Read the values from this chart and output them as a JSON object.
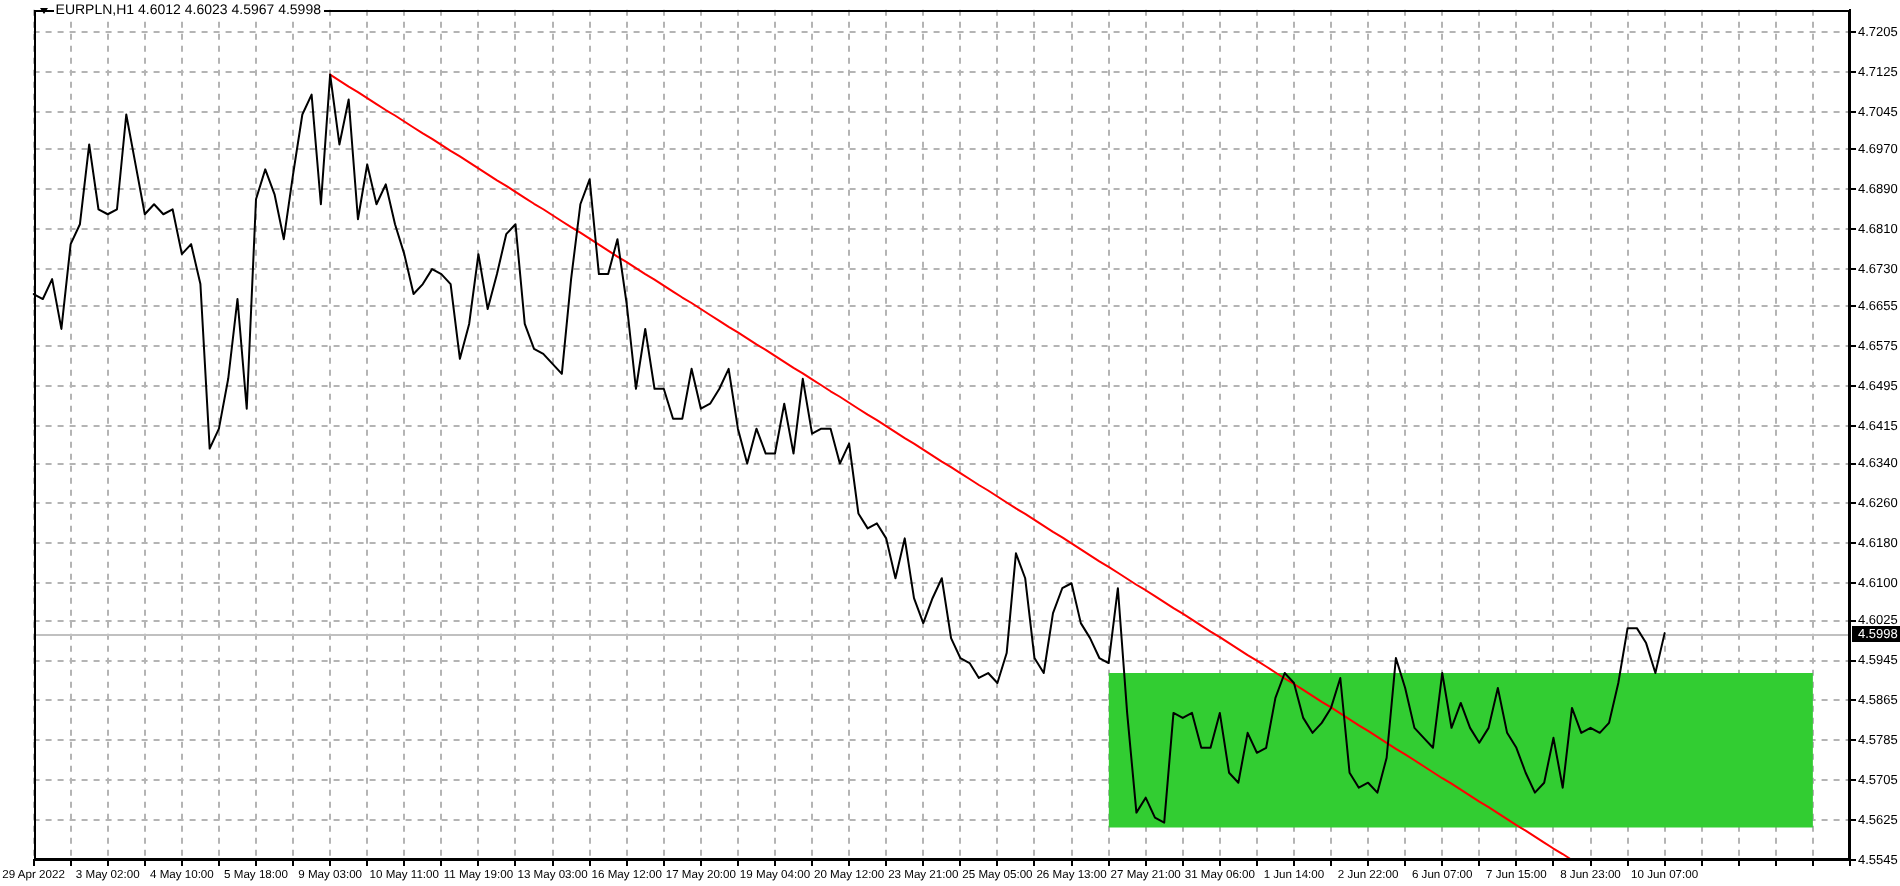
{
  "chart_data": {
    "type": "line",
    "title": "EURPLN,H1 4.6012 4.6023 4.5967 4.5998",
    "categories": [
      "29 Apr 2022",
      null,
      null,
      null,
      null,
      null,
      null,
      null,
      "3 May 02:00",
      null,
      null,
      null,
      null,
      null,
      null,
      null,
      "4 May 10:00",
      null,
      null,
      null,
      null,
      null,
      null,
      null,
      "5 May 18:00",
      null,
      null,
      null,
      null,
      null,
      null,
      null,
      "9 May 03:00",
      null,
      null,
      null,
      null,
      null,
      null,
      null,
      "10 May 11:00",
      null,
      null,
      null,
      null,
      null,
      null,
      null,
      "11 May 19:00",
      null,
      null,
      null,
      null,
      null,
      null,
      null,
      "13 May 03:00",
      null,
      null,
      null,
      null,
      null,
      null,
      null,
      "16 May 12:00",
      null,
      null,
      null,
      null,
      null,
      null,
      null,
      "17 May 20:00",
      null,
      null,
      null,
      null,
      null,
      null,
      null,
      "19 May 04:00",
      null,
      null,
      null,
      null,
      null,
      null,
      null,
      "20 May 12:00",
      null,
      null,
      null,
      null,
      null,
      null,
      null,
      "23 May 21:00",
      null,
      null,
      null,
      null,
      null,
      null,
      null,
      "25 May 05:00",
      null,
      null,
      null,
      null,
      null,
      null,
      null,
      "26 May 13:00",
      null,
      null,
      null,
      null,
      null,
      null,
      null,
      "27 May 21:00",
      null,
      null,
      null,
      null,
      null,
      null,
      null,
      "31 May 06:00",
      null,
      null,
      null,
      null,
      null,
      null,
      null,
      "1 Jun 14:00",
      null,
      null,
      null,
      null,
      null,
      null,
      null,
      "2 Jun 22:00",
      null,
      null,
      null,
      null,
      null,
      null,
      null,
      "6 Jun 07:00",
      null,
      null,
      null,
      null,
      null,
      null,
      null,
      "7 Jun 15:00",
      null,
      null,
      null,
      null,
      null,
      null,
      null,
      "8 Jun 23:00",
      null,
      null,
      null,
      null,
      null,
      null,
      null,
      "10 Jun 07:00",
      null,
      null,
      null,
      null,
      null,
      null,
      null,
      null,
      null,
      null,
      null,
      null,
      null,
      null,
      null,
      null,
      null,
      null,
      null,
      null
    ],
    "ylim": [
      4.5545,
      4.725
    ],
    "yticks": [
      4.5545,
      4.5625,
      4.5705,
      4.5785,
      4.5865,
      4.5945,
      4.6025,
      {
        "value": 4.61,
        "label": "4.6100"
      },
      {
        "value": 4.618,
        "label": "4.6180"
      },
      {
        "value": 4.626,
        "label": "4.6260"
      },
      {
        "value": 4.634,
        "label": "4.6340"
      },
      4.6415,
      4.6495,
      4.6575,
      4.6655,
      {
        "value": 4.673,
        "label": "4.6730"
      },
      {
        "value": 4.681,
        "label": "4.6810"
      },
      {
        "value": 4.689,
        "label": "4.6890"
      },
      {
        "value": 4.697,
        "label": "4.6970"
      },
      4.7045,
      4.7125,
      4.7205
    ],
    "grid": true,
    "marker": "none",
    "ref_lines": [
      {
        "axis": "y",
        "value": 4.5998,
        "label": "4.5998",
        "color": "#c0c0c0"
      }
    ],
    "series": [
      {
        "type": "line",
        "color": "#000000",
        "values": [
          4.668,
          4.667,
          4.671,
          4.661,
          4.678,
          4.682,
          4.698,
          4.685,
          4.684,
          4.685,
          4.704,
          4.694,
          4.684,
          4.686,
          4.684,
          4.685,
          4.676,
          4.678,
          4.67,
          4.637,
          4.641,
          4.651,
          4.667,
          4.645,
          4.687,
          4.693,
          4.688,
          4.679,
          4.692,
          4.704,
          4.708,
          4.686,
          4.712,
          4.698,
          4.707,
          4.683,
          4.694,
          4.686,
          4.69,
          4.682,
          4.676,
          4.668,
          4.67,
          4.673,
          4.672,
          4.67,
          4.655,
          4.662,
          4.676,
          4.665,
          4.672,
          4.68,
          4.682,
          4.662,
          4.657,
          4.656,
          4.654,
          4.652,
          4.671,
          4.686,
          4.691,
          4.672,
          4.672,
          4.679,
          4.666,
          4.649,
          4.661,
          4.649,
          4.649,
          4.643,
          4.643,
          4.653,
          4.645,
          4.646,
          4.649,
          4.653,
          4.641,
          4.634,
          4.641,
          4.636,
          4.636,
          4.646,
          4.636,
          4.651,
          4.64,
          4.641,
          4.641,
          4.634,
          4.638,
          4.624,
          4.621,
          4.622,
          4.619,
          4.611,
          4.619,
          4.607,
          4.602,
          4.607,
          4.611,
          4.599,
          4.595,
          4.594,
          4.591,
          4.592,
          4.59,
          4.596,
          4.616,
          4.611,
          4.595,
          4.592,
          4.604,
          4.609,
          4.61,
          4.602,
          4.599,
          4.595,
          4.594,
          4.609,
          4.584,
          4.564,
          4.567,
          4.563,
          4.562,
          4.584,
          4.583,
          4.584,
          4.577,
          4.577,
          4.584,
          4.572,
          4.57,
          4.58,
          4.576,
          4.577,
          4.587,
          4.592,
          4.59,
          4.583,
          4.58,
          4.582,
          4.585,
          4.591,
          4.572,
          4.569,
          4.57,
          4.568,
          4.575,
          4.595,
          4.589,
          4.581,
          4.579,
          4.577,
          4.592,
          4.581,
          4.586,
          4.581,
          4.578,
          4.581,
          4.589,
          4.58,
          4.577,
          4.572,
          4.568,
          4.57,
          4.579,
          4.569,
          4.585,
          4.58,
          4.581,
          4.58,
          4.582,
          4.59,
          4.601,
          4.601,
          4.598,
          4.592,
          4.6,
          null,
          null,
          null,
          null,
          null,
          null,
          null,
          null,
          null,
          null,
          null,
          null,
          null,
          null,
          null,
          null,
          null,
          null,
          null,
          null
        ]
      },
      {
        "type": "line",
        "color": "#ff0000",
        "values": [
          null,
          null,
          null,
          null,
          null,
          null,
          null,
          null,
          null,
          null,
          null,
          null,
          null,
          null,
          null,
          null,
          null,
          null,
          null,
          null,
          null,
          null,
          null,
          null,
          null,
          null,
          null,
          null,
          null,
          null,
          null,
          null,
          4.712,
          4.7108,
          4.7096,
          4.7085,
          4.7073,
          4.7061,
          4.7049,
          4.7038,
          4.7026,
          4.7014,
          4.7002,
          4.6991,
          4.6979,
          4.6967,
          4.6956,
          4.6944,
          4.6932,
          4.692,
          4.6908,
          4.6897,
          4.6885,
          4.6873,
          4.6861,
          4.685,
          4.6838,
          4.6826,
          4.6814,
          4.6803,
          4.6791,
          4.6779,
          4.6767,
          4.6755,
          4.6744,
          4.6732,
          4.672,
          4.6709,
          4.6697,
          4.6685,
          4.6673,
          4.6662,
          4.665,
          4.6638,
          4.6626,
          4.6614,
          4.6603,
          4.6591,
          4.6579,
          4.6568,
          4.6556,
          4.6544,
          4.6532,
          4.6521,
          4.6509,
          4.6497,
          4.6485,
          4.6474,
          4.6462,
          4.645,
          4.6438,
          4.6427,
          4.6415,
          4.6403,
          4.6391,
          4.638,
          4.6368,
          4.6356,
          4.6344,
          4.6333,
          4.6321,
          4.6309,
          4.6297,
          4.6286,
          4.6274,
          4.6262,
          4.625,
          4.6239,
          4.6227,
          4.6215,
          4.6203,
          4.6192,
          4.618,
          4.6168,
          4.6156,
          4.6144,
          4.6133,
          4.6121,
          4.6109,
          4.6097,
          4.6086,
          4.6074,
          4.6062,
          4.605,
          4.6039,
          4.6027,
          4.6015,
          4.6003,
          4.5992,
          4.598,
          4.5968,
          4.5956,
          4.5945,
          4.5933,
          4.5921,
          4.5909,
          4.5898,
          4.5886,
          4.5874,
          4.5862,
          4.5851,
          4.5839,
          4.5827,
          4.5815,
          4.5804,
          4.5792,
          4.578,
          4.5768,
          4.5757,
          4.5745,
          4.5733,
          4.5721,
          4.5709,
          4.5698,
          4.5686,
          4.5674,
          4.5662,
          4.5651,
          4.5639,
          4.5627,
          4.5615,
          4.5604,
          4.5592,
          4.558,
          4.5568,
          4.5557,
          4.5545,
          null,
          null,
          null,
          null,
          null,
          null,
          null,
          null,
          null,
          null,
          null,
          null,
          null,
          null,
          null,
          null,
          null,
          null,
          null,
          null,
          null,
          null,
          null,
          null,
          null,
          null,
          null,
          null,
          null,
          null
        ]
      },
      {
        "type": "area",
        "color": "#32cd32",
        "values": [
          null,
          null,
          null,
          null,
          null,
          null,
          null,
          null,
          null,
          null,
          null,
          null,
          null,
          null,
          null,
          null,
          null,
          null,
          null,
          null,
          null,
          null,
          null,
          null,
          null,
          null,
          null,
          null,
          null,
          null,
          null,
          null,
          null,
          null,
          null,
          null,
          null,
          null,
          null,
          null,
          null,
          null,
          null,
          null,
          null,
          null,
          null,
          null,
          null,
          null,
          null,
          null,
          null,
          null,
          null,
          null,
          null,
          null,
          null,
          null,
          null,
          null,
          null,
          null,
          null,
          null,
          null,
          null,
          null,
          null,
          null,
          null,
          null,
          null,
          null,
          null,
          null,
          null,
          null,
          null,
          null,
          null,
          null,
          null,
          null,
          null,
          null,
          null,
          null,
          null,
          null,
          null,
          null,
          null,
          null,
          null,
          null,
          null,
          null,
          null,
          null,
          null,
          null,
          null,
          null,
          null,
          null,
          null,
          null,
          null,
          null,
          null,
          null,
          null,
          null,
          null,
          null,
          null,
          null,
          null,
          null,
          null,
          null,
          null,
          null,
          null,
          null,
          null,
          null,
          null,
          null,
          null,
          null,
          null,
          null,
          null,
          null,
          null,
          null,
          null,
          null,
          null,
          null,
          null,
          null,
          null,
          null,
          null,
          null,
          null,
          null,
          null,
          null,
          null,
          null,
          null,
          null,
          null,
          null,
          null,
          null,
          null,
          null,
          null,
          null,
          null,
          null,
          null,
          null,
          null,
          null,
          null,
          null,
          null,
          null,
          null,
          null,
          null,
          null,
          null,
          null,
          null,
          null,
          null,
          null,
          null,
          null,
          null,
          null,
          null,
          null,
          null,
          null,
          null,
          null,
          null,
          null
        ],
        "lower": [
          null,
          null,
          null,
          null,
          null,
          null,
          null,
          null,
          null,
          null,
          null,
          null,
          null,
          null,
          null,
          null,
          null,
          null,
          null,
          null,
          null,
          null,
          null,
          null,
          null,
          null,
          null,
          null,
          null,
          null,
          null,
          null,
          null,
          null,
          null,
          null,
          null,
          null,
          null,
          null,
          null,
          null,
          null,
          null,
          null,
          null,
          null,
          null,
          null,
          null,
          null,
          null,
          null,
          null,
          null,
          null,
          null,
          null,
          null,
          null,
          null,
          null,
          null,
          null,
          null,
          null,
          null,
          null,
          null,
          null,
          null,
          null,
          null,
          null,
          null,
          null,
          null,
          null,
          null,
          null,
          null,
          null,
          null,
          null,
          null,
          null,
          null,
          null,
          null,
          null,
          null,
          null,
          null,
          null,
          null,
          null,
          null,
          null,
          null,
          null,
          null,
          null,
          null,
          null,
          null,
          null,
          null,
          null,
          null,
          null,
          null,
          null,
          null,
          null,
          null,
          null,
          4.561,
          4.561,
          4.561,
          4.561,
          4.561,
          4.561,
          4.561,
          4.561,
          4.561,
          4.561,
          4.561,
          4.561,
          4.561,
          4.561,
          4.561,
          4.561,
          4.561,
          4.561,
          4.561,
          4.561,
          4.561,
          4.561,
          4.561,
          4.561,
          4.561,
          4.561,
          4.561,
          4.561,
          4.561,
          4.561,
          4.561,
          4.561,
          4.561,
          4.561,
          4.561,
          4.561,
          4.561,
          4.561,
          4.561,
          4.561,
          4.561,
          4.561,
          4.561,
          4.561,
          4.561,
          4.561,
          4.561,
          4.561,
          4.561,
          4.561,
          4.561,
          4.561,
          4.561,
          4.561,
          4.561,
          4.561,
          4.561,
          4.561,
          4.561,
          4.561,
          4.561,
          4.561,
          4.561,
          4.561,
          4.561,
          4.561,
          4.561,
          4.561,
          4.561,
          4.561,
          4.561,
          4.561,
          4.561,
          4.561,
          4.561,
          4.561,
          4.561,
          null,
          null,
          null,
          null
        ],
        "upper": [
          null,
          null,
          null,
          null,
          null,
          null,
          null,
          null,
          null,
          null,
          null,
          null,
          null,
          null,
          null,
          null,
          null,
          null,
          null,
          null,
          null,
          null,
          null,
          null,
          null,
          null,
          null,
          null,
          null,
          null,
          null,
          null,
          null,
          null,
          null,
          null,
          null,
          null,
          null,
          null,
          null,
          null,
          null,
          null,
          null,
          null,
          null,
          null,
          null,
          null,
          null,
          null,
          null,
          null,
          null,
          null,
          null,
          null,
          null,
          null,
          null,
          null,
          null,
          null,
          null,
          null,
          null,
          null,
          null,
          null,
          null,
          null,
          null,
          null,
          null,
          null,
          null,
          null,
          null,
          null,
          null,
          null,
          null,
          null,
          null,
          null,
          null,
          null,
          null,
          null,
          null,
          null,
          null,
          null,
          null,
          null,
          null,
          null,
          null,
          null,
          null,
          null,
          null,
          null,
          null,
          null,
          null,
          null,
          null,
          null,
          null,
          null,
          null,
          null,
          null,
          null,
          4.592,
          4.592,
          4.592,
          4.592,
          4.592,
          4.592,
          4.592,
          4.592,
          4.592,
          4.592,
          4.592,
          4.592,
          4.592,
          4.592,
          4.592,
          4.592,
          4.592,
          4.592,
          4.592,
          4.592,
          4.592,
          4.592,
          4.592,
          4.592,
          4.592,
          4.592,
          4.592,
          4.592,
          4.592,
          4.592,
          4.592,
          4.592,
          4.592,
          4.592,
          4.592,
          4.592,
          4.592,
          4.592,
          4.592,
          4.592,
          4.592,
          4.592,
          4.592,
          4.592,
          4.592,
          4.592,
          4.592,
          4.592,
          4.592,
          4.592,
          4.592,
          4.592,
          4.592,
          4.592,
          4.592,
          4.592,
          4.592,
          4.592,
          4.592,
          4.592,
          4.592,
          4.592,
          4.592,
          4.592,
          4.592,
          4.592,
          4.592,
          4.592,
          4.592,
          4.592,
          4.592,
          4.592,
          4.592,
          4.592,
          4.592,
          4.592,
          4.592,
          null,
          null,
          null,
          null
        ]
      }
    ]
  }
}
